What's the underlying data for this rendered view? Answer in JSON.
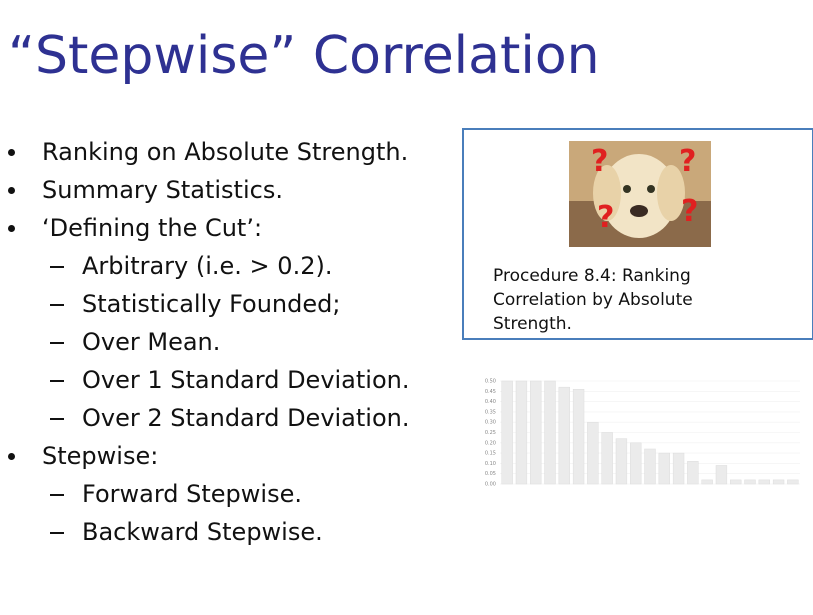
{
  "title": "“Stepwise” Correlation",
  "bullets": [
    {
      "text": "Ranking on Absolute Strength."
    },
    {
      "text": "Summary Statistics."
    },
    {
      "text": "‘Defining the Cut’:",
      "sub": [
        "Arbitrary (i.e. > 0.2).",
        "Statistically Founded;",
        "Over Mean.",
        "Over 1 Standard Deviation.",
        "Over 2 Standard Deviation."
      ]
    },
    {
      "text": "Stepwise:",
      "sub": [
        "Forward Stepwise.",
        "Backward Stepwise."
      ]
    }
  ],
  "callout": {
    "caption": "Procedure 8.4: Ranking Correlation by Absolute Strength."
  },
  "chart_data": {
    "type": "bar",
    "categories": [
      null,
      null,
      null,
      null,
      null,
      null,
      null,
      null,
      null,
      null,
      null,
      null,
      null,
      null,
      null,
      null,
      null,
      null,
      null,
      null,
      null
    ],
    "values": [
      0.5,
      0.5,
      0.5,
      0.5,
      0.47,
      0.46,
      0.3,
      0.25,
      0.22,
      0.2,
      0.17,
      0.15,
      0.15,
      0.11,
      0.02,
      0.09,
      0.02,
      0.02,
      0.02,
      0.02,
      0.02
    ],
    "color": "#ebebeb",
    "ylim": [
      0,
      0.5
    ],
    "yticks": [
      {
        "value": 0,
        "label": "0.00"
      },
      {
        "value": 0.05,
        "label": "0.05"
      },
      {
        "value": 0.1,
        "label": "0.10"
      },
      {
        "value": 0.15,
        "label": "0.15"
      },
      {
        "value": 0.2,
        "label": "0.20"
      },
      {
        "value": 0.25,
        "label": "0.25"
      },
      {
        "value": 0.3,
        "label": "0.30"
      },
      {
        "value": 0.35,
        "label": "0.35"
      },
      {
        "value": 0.4,
        "label": "0.40"
      },
      {
        "value": 0.45,
        "label": "0.45"
      },
      {
        "value": 0.5,
        "label": "0.50"
      }
    ],
    "grid": true
  }
}
